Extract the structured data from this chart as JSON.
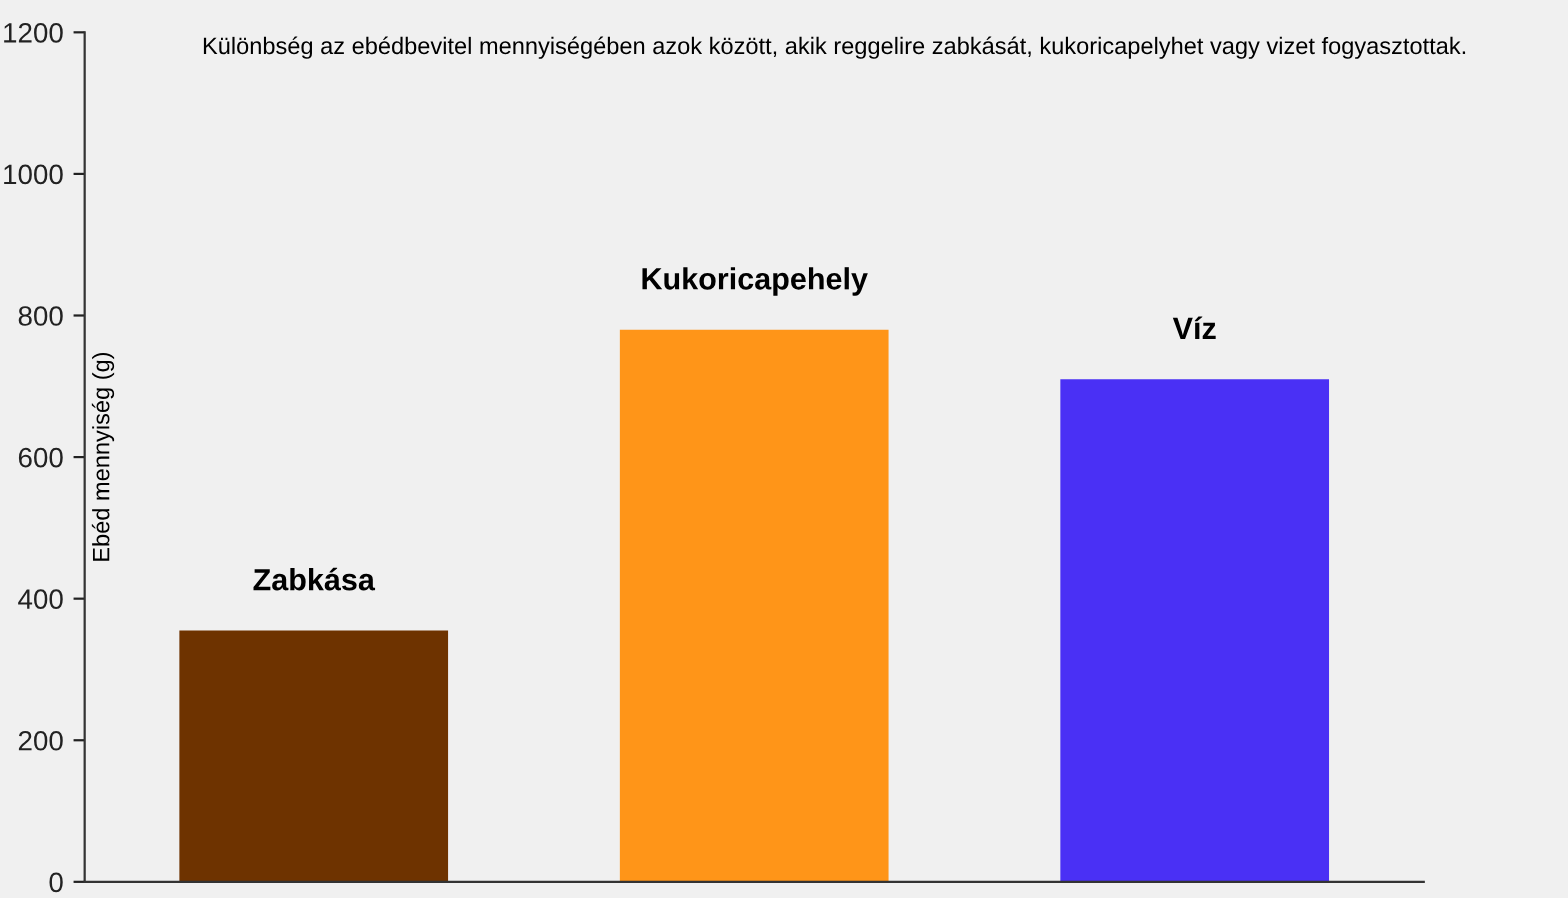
{
  "chart_data": {
    "type": "bar",
    "title": "Különbség az ebédbevitel mennyiségében azok között, akik reggelire zabkását, kukoricapelyhet vagy vizet fogyasztottak.",
    "ylabel": "Ebéd mennyiség (g)",
    "categories": [
      "Zabkása",
      "Kukoricapehely",
      "Víz"
    ],
    "values": [
      355,
      780,
      710
    ],
    "colors": [
      "#6e3300",
      "#ff9518",
      "#4a30f5"
    ],
    "ylim": [
      0,
      1200
    ],
    "yticks": [
      0,
      200,
      400,
      600,
      800,
      1000,
      1200
    ],
    "grid": false
  }
}
